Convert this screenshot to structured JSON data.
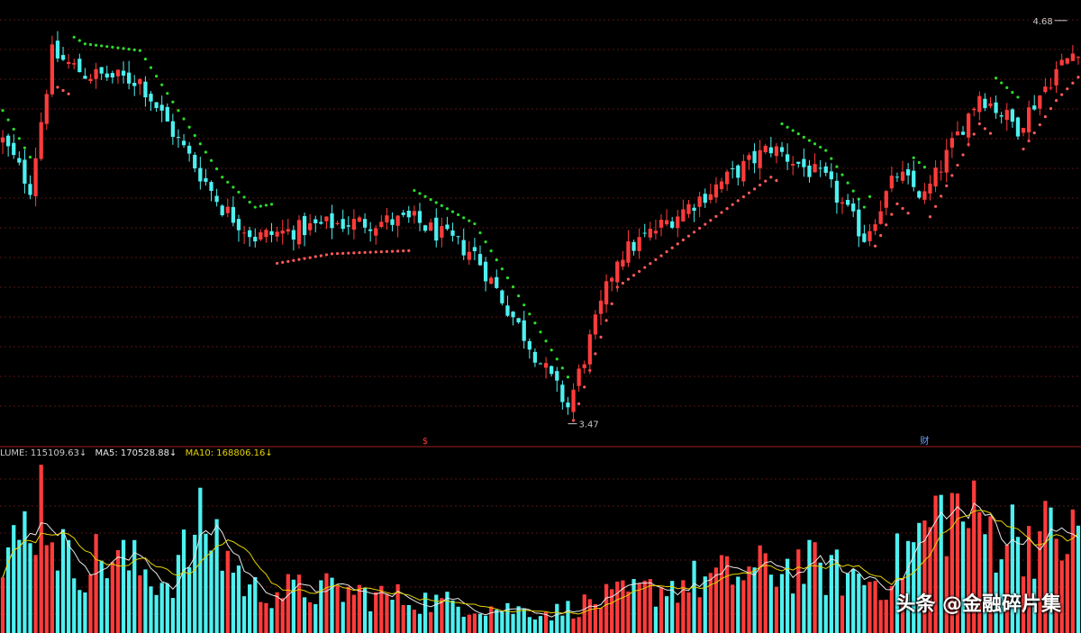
{
  "legend": {
    "volume": "LUME: 115109.63↓",
    "ma5": "MA5: 170528.88↓",
    "ma10": "MA10: 168806.16↓"
  },
  "annotations": {
    "high_label": "4.68",
    "low_label": "3.47",
    "marker_a": "$",
    "marker_b": "财"
  },
  "watermark": "头条 @金融碎片集",
  "colors": {
    "up": "#ff3b3b",
    "down": "#4ef0f0",
    "stop_up": "#ff5a5a",
    "stop_down": "#2bdc2b",
    "ma5": "#e8e8e8",
    "ma10": "#e6d400",
    "grid": "#5a1414",
    "separator": "#a01e1e",
    "text": "#c8c8c8"
  },
  "chart_data": {
    "type": "candlestick",
    "price_range": [
      3.45,
      4.72
    ],
    "high": 4.68,
    "low": 3.47,
    "key_prices": [
      [
        0,
        4.32
      ],
      [
        5,
        4.18
      ],
      [
        9,
        4.58
      ],
      [
        15,
        4.52
      ],
      [
        25,
        4.5
      ],
      [
        32,
        4.32
      ],
      [
        40,
        4.12
      ],
      [
        46,
        4.03
      ],
      [
        60,
        4.07
      ],
      [
        75,
        4.08
      ],
      [
        86,
        3.98
      ],
      [
        103,
        3.52
      ],
      [
        112,
        3.97
      ],
      [
        140,
        4.3
      ],
      [
        150,
        4.2
      ],
      [
        157,
        4.03
      ],
      [
        163,
        4.22
      ],
      [
        168,
        4.15
      ],
      [
        178,
        4.46
      ],
      [
        185,
        4.36
      ],
      [
        192,
        4.53
      ],
      [
        196,
        4.6
      ]
    ],
    "volume_levels": [
      [
        0,
        0.35
      ],
      [
        7,
        0.82
      ],
      [
        12,
        0.4
      ],
      [
        20,
        0.45
      ],
      [
        30,
        0.3
      ],
      [
        37,
        0.65
      ],
      [
        45,
        0.25
      ],
      [
        60,
        0.25
      ],
      [
        80,
        0.18
      ],
      [
        100,
        0.12
      ],
      [
        110,
        0.2
      ],
      [
        125,
        0.3
      ],
      [
        145,
        0.4
      ],
      [
        160,
        0.3
      ],
      [
        172,
        0.75
      ],
      [
        180,
        0.6
      ],
      [
        196,
        0.55
      ]
    ],
    "candle_count": 197,
    "volume_panel_legend": [
      "VOLUME",
      "MA5",
      "MA10"
    ]
  }
}
